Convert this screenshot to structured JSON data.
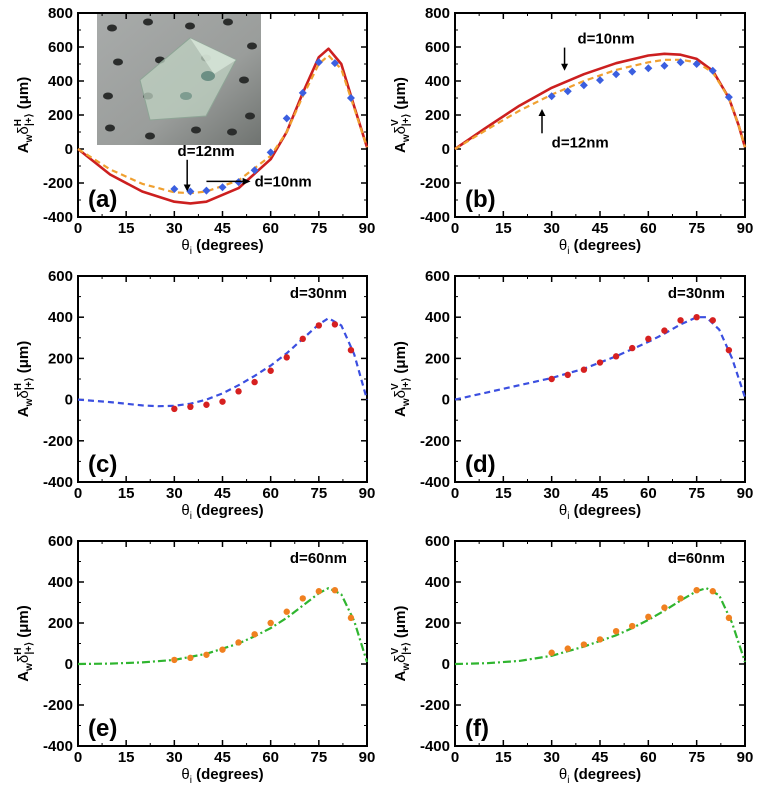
{
  "chart_data": [
    {
      "id": "a",
      "type": "line",
      "panel_label": "(a)",
      "xlabel": "θ",
      "xlabel_sub": "i",
      "xlabel_unit": " (degrees)",
      "ylabel": "A",
      "ylabel_w": "w",
      "ylabel_delta": "δ",
      "ylabel_sup": "H",
      "ylabel_sub": "|+⟩",
      "ylabel_unit": " (μm)",
      "xlim": [
        0,
        90
      ],
      "ylim": [
        -400,
        800
      ],
      "xticks": [
        "0",
        "15",
        "30",
        "45",
        "60",
        "75",
        "90"
      ],
      "yticks": [
        "-400",
        "-200",
        "0",
        "200",
        "400",
        "600",
        "800"
      ],
      "grid": false,
      "has_inset_photo": true,
      "series": [
        {
          "style": "solid",
          "color": "#cc1f1f",
          "x": [
            0,
            10,
            20,
            30,
            35,
            40,
            50,
            60,
            65,
            70,
            75,
            78,
            82,
            86,
            90
          ],
          "y": [
            0,
            -150,
            -250,
            -310,
            -320,
            -310,
            -230,
            -60,
            100,
            330,
            540,
            590,
            500,
            250,
            10
          ]
        },
        {
          "style": "dashed",
          "color": "#f0a030",
          "x": [
            0,
            10,
            20,
            30,
            35,
            40,
            50,
            60,
            65,
            70,
            75,
            78,
            82,
            86,
            90
          ],
          "y": [
            0,
            -120,
            -205,
            -255,
            -260,
            -250,
            -185,
            -40,
            100,
            310,
            500,
            550,
            470,
            240,
            10
          ]
        },
        {
          "style": "markers",
          "color": "#3b5fe0",
          "x": [
            30,
            35,
            40,
            45,
            50,
            55,
            60,
            65,
            70,
            75,
            80,
            85
          ],
          "y": [
            -235,
            -250,
            -245,
            -225,
            -195,
            -125,
            -20,
            180,
            330,
            510,
            505,
            300
          ]
        }
      ],
      "annotations": [
        {
          "text": "d=12nm",
          "x": 31,
          "y": -40,
          "arrow_to": [
            34,
            -250
          ]
        },
        {
          "text": "d=10nm",
          "x": 55,
          "y": -220,
          "arrow_from": [
            40,
            -225
          ]
        }
      ]
    },
    {
      "id": "b",
      "type": "line",
      "panel_label": "(b)",
      "xlabel": "θ",
      "xlabel_sub": "i",
      "xlabel_unit": " (degrees)",
      "ylabel": "A",
      "ylabel_w": "w",
      "ylabel_delta": "δ",
      "ylabel_sup": "V",
      "ylabel_sub": "|+⟩",
      "ylabel_unit": " (μm)",
      "xlim": [
        0,
        90
      ],
      "ylim": [
        -400,
        800
      ],
      "xticks": [
        "0",
        "15",
        "30",
        "45",
        "60",
        "75",
        "90"
      ],
      "yticks": [
        "-400",
        "-200",
        "0",
        "200",
        "400",
        "600",
        "800"
      ],
      "grid": false,
      "series": [
        {
          "style": "solid",
          "color": "#cc1f1f",
          "x": [
            0,
            10,
            20,
            30,
            40,
            50,
            60,
            65,
            70,
            75,
            80,
            85,
            88,
            90
          ],
          "y": [
            0,
            130,
            255,
            360,
            440,
            505,
            550,
            560,
            555,
            530,
            460,
            300,
            140,
            10
          ]
        },
        {
          "style": "dashed",
          "color": "#f0a030",
          "x": [
            0,
            10,
            20,
            30,
            40,
            50,
            60,
            65,
            70,
            75,
            80,
            85,
            88,
            90
          ],
          "y": [
            0,
            115,
            225,
            320,
            400,
            465,
            510,
            525,
            525,
            510,
            450,
            300,
            140,
            10
          ]
        },
        {
          "style": "markers",
          "color": "#3b5fe0",
          "x": [
            30,
            35,
            40,
            45,
            50,
            55,
            60,
            65,
            70,
            75,
            80,
            85
          ],
          "y": [
            310,
            340,
            375,
            405,
            440,
            455,
            475,
            490,
            510,
            500,
            460,
            305
          ]
        }
      ],
      "annotations": [
        {
          "text": "d=10nm",
          "x": 38,
          "y": 620,
          "arrow_to": [
            34,
            460
          ]
        },
        {
          "text": "d=12nm",
          "x": 30,
          "y": 10,
          "arrow_to": [
            27,
            235
          ]
        }
      ]
    },
    {
      "id": "c",
      "type": "line",
      "panel_label": "(c)",
      "annotation": "d=30nm",
      "xlabel": "θ",
      "xlabel_sub": "i",
      "xlabel_unit": " (degrees)",
      "ylabel": "A",
      "ylabel_w": "w",
      "ylabel_delta": "δ",
      "ylabel_sup": "H",
      "ylabel_sub": "|+⟩",
      "ylabel_unit": " (μm)",
      "xlim": [
        0,
        90
      ],
      "ylim": [
        -400,
        600
      ],
      "xticks": [
        "0",
        "15",
        "30",
        "45",
        "60",
        "75",
        "90"
      ],
      "yticks": [
        "-400",
        "-200",
        "0",
        "200",
        "400",
        "600"
      ],
      "grid": false,
      "series": [
        {
          "style": "dashed",
          "color": "#3b4fe0",
          "x": [
            0,
            10,
            20,
            25,
            30,
            35,
            40,
            45,
            50,
            55,
            60,
            65,
            70,
            75,
            78,
            82,
            86,
            90
          ],
          "y": [
            0,
            -12,
            -28,
            -32,
            -30,
            -20,
            0,
            30,
            70,
            115,
            165,
            225,
            295,
            365,
            395,
            360,
            220,
            0
          ]
        },
        {
          "style": "markers",
          "color": "#d62020",
          "x": [
            30,
            35,
            40,
            45,
            50,
            55,
            60,
            65,
            70,
            75,
            80,
            85
          ],
          "y": [
            -45,
            -35,
            -25,
            -10,
            40,
            85,
            140,
            205,
            295,
            360,
            365,
            240
          ]
        }
      ]
    },
    {
      "id": "d",
      "type": "line",
      "panel_label": "(d)",
      "annotation": "d=30nm",
      "xlabel": "θ",
      "xlabel_sub": "i",
      "xlabel_unit": " (degrees)",
      "ylabel": "A",
      "ylabel_w": "w",
      "ylabel_delta": "δ",
      "ylabel_sup": "V",
      "ylabel_sub": "|+⟩",
      "ylabel_unit": " (μm)",
      "xlim": [
        0,
        90
      ],
      "ylim": [
        -400,
        600
      ],
      "xticks": [
        "0",
        "15",
        "30",
        "45",
        "60",
        "75",
        "90"
      ],
      "yticks": [
        "-400",
        "-200",
        "0",
        "200",
        "400",
        "600"
      ],
      "grid": false,
      "series": [
        {
          "style": "dashed",
          "color": "#3b4fe0",
          "x": [
            0,
            10,
            20,
            30,
            40,
            50,
            60,
            65,
            70,
            75,
            78,
            82,
            86,
            90
          ],
          "y": [
            0,
            35,
            70,
            105,
            150,
            210,
            280,
            320,
            365,
            400,
            400,
            340,
            200,
            10
          ]
        },
        {
          "style": "markers",
          "color": "#d62020",
          "x": [
            30,
            35,
            40,
            45,
            50,
            55,
            60,
            65,
            70,
            75,
            80,
            85
          ],
          "y": [
            100,
            120,
            145,
            180,
            210,
            250,
            295,
            335,
            385,
            400,
            385,
            240
          ]
        }
      ]
    },
    {
      "id": "e",
      "type": "line",
      "panel_label": "(e)",
      "annotation": "d=60nm",
      "xlabel": "θ",
      "xlabel_sub": "i",
      "xlabel_unit": " (degrees)",
      "ylabel": "A",
      "ylabel_w": "w",
      "ylabel_delta": "δ",
      "ylabel_sup": "H",
      "ylabel_sub": "|+⟩",
      "ylabel_unit": " (μm)",
      "xlim": [
        0,
        90
      ],
      "ylim": [
        -400,
        600
      ],
      "xticks": [
        "0",
        "15",
        "30",
        "45",
        "60",
        "75",
        "90"
      ],
      "yticks": [
        "-400",
        "-200",
        "0",
        "200",
        "400",
        "600"
      ],
      "grid": false,
      "series": [
        {
          "style": "dashdot",
          "color": "#2fb52f",
          "x": [
            0,
            10,
            20,
            30,
            40,
            50,
            55,
            60,
            65,
            70,
            75,
            78,
            82,
            86,
            90
          ],
          "y": [
            0,
            2,
            8,
            20,
            50,
            100,
            135,
            175,
            225,
            285,
            345,
            370,
            340,
            210,
            10
          ]
        },
        {
          "style": "markers",
          "color": "#f08020",
          "x": [
            30,
            35,
            40,
            45,
            50,
            55,
            60,
            65,
            70,
            75,
            80,
            85
          ],
          "y": [
            20,
            30,
            45,
            70,
            105,
            145,
            200,
            255,
            320,
            355,
            360,
            225
          ]
        }
      ]
    },
    {
      "id": "f",
      "type": "line",
      "panel_label": "(f)",
      "annotation": "d=60nm",
      "xlabel": "θ",
      "xlabel_sub": "i",
      "xlabel_unit": " (degrees)",
      "ylabel": "A",
      "ylabel_w": "w",
      "ylabel_delta": "δ",
      "ylabel_sup": "V",
      "ylabel_sub": "|+⟩",
      "ylabel_unit": " (μm)",
      "xlim": [
        0,
        90
      ],
      "ylim": [
        -400,
        600
      ],
      "xticks": [
        "0",
        "15",
        "30",
        "45",
        "60",
        "75",
        "90"
      ],
      "yticks": [
        "-400",
        "-200",
        "0",
        "200",
        "400",
        "600"
      ],
      "grid": false,
      "series": [
        {
          "style": "dashdot",
          "color": "#2fb52f",
          "x": [
            0,
            10,
            20,
            30,
            40,
            50,
            55,
            60,
            65,
            70,
            75,
            78,
            82,
            86,
            90
          ],
          "y": [
            0,
            4,
            15,
            40,
            85,
            140,
            175,
            215,
            260,
            310,
            355,
            370,
            335,
            200,
            10
          ]
        },
        {
          "style": "markers",
          "color": "#f08020",
          "x": [
            30,
            35,
            40,
            45,
            50,
            55,
            60,
            65,
            70,
            75,
            80,
            85
          ],
          "y": [
            55,
            75,
            95,
            120,
            160,
            185,
            230,
            275,
            320,
            360,
            355,
            225
          ]
        }
      ]
    }
  ]
}
